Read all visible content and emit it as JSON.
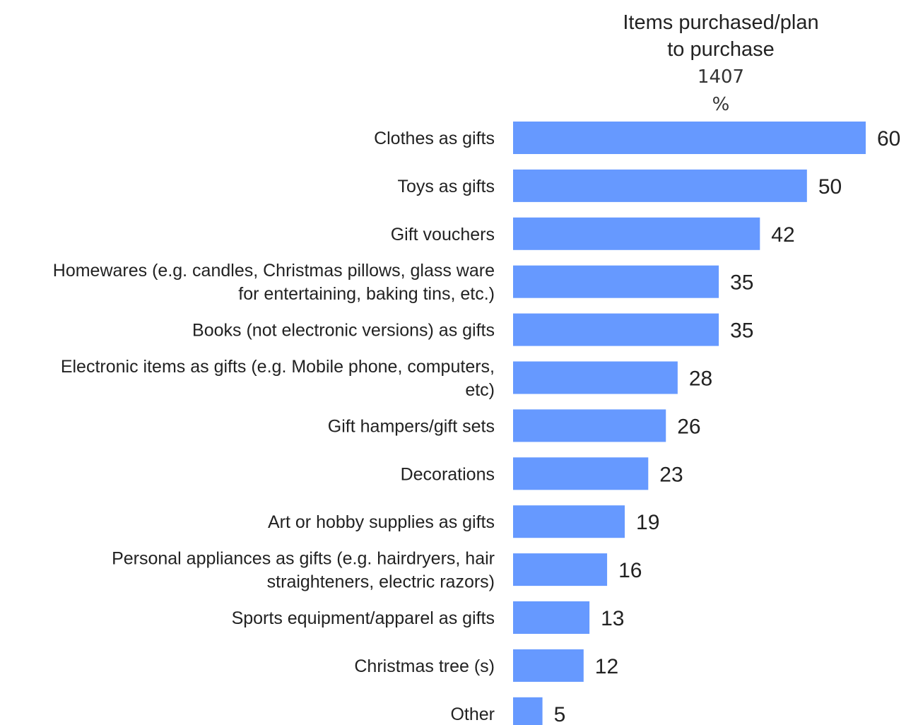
{
  "chart_data": {
    "type": "bar",
    "orientation": "horizontal",
    "header": {
      "title_lines": [
        "Items purchased/plan",
        "to purchase"
      ],
      "base": "1407",
      "unit": "%"
    },
    "categories": [
      [
        "Clothes as gifts"
      ],
      [
        "Toys as gifts"
      ],
      [
        "Gift vouchers"
      ],
      [
        "Homewares (e.g. candles, Christmas pillows, glass ware",
        "for entertaining, baking tins, etc.)"
      ],
      [
        "Books (not electronic versions) as gifts"
      ],
      [
        "Electronic items as gifts (e.g. Mobile phone, computers,",
        "etc)"
      ],
      [
        "Gift hampers/gift sets"
      ],
      [
        "Decorations"
      ],
      [
        "Art or hobby supplies as gifts"
      ],
      [
        "Personal appliances as gifts (e.g. hairdryers, hair",
        "straighteners, electric razors)"
      ],
      [
        "Sports equipment/apparel as gifts"
      ],
      [
        "Christmas tree (s)"
      ],
      [
        "Other"
      ]
    ],
    "values": [
      60,
      50,
      42,
      35,
      35,
      28,
      26,
      23,
      19,
      16,
      13,
      12,
      5
    ],
    "bar_color": "#6699ff",
    "xlim": [
      0,
      60
    ],
    "grid": false,
    "legend": "none"
  }
}
